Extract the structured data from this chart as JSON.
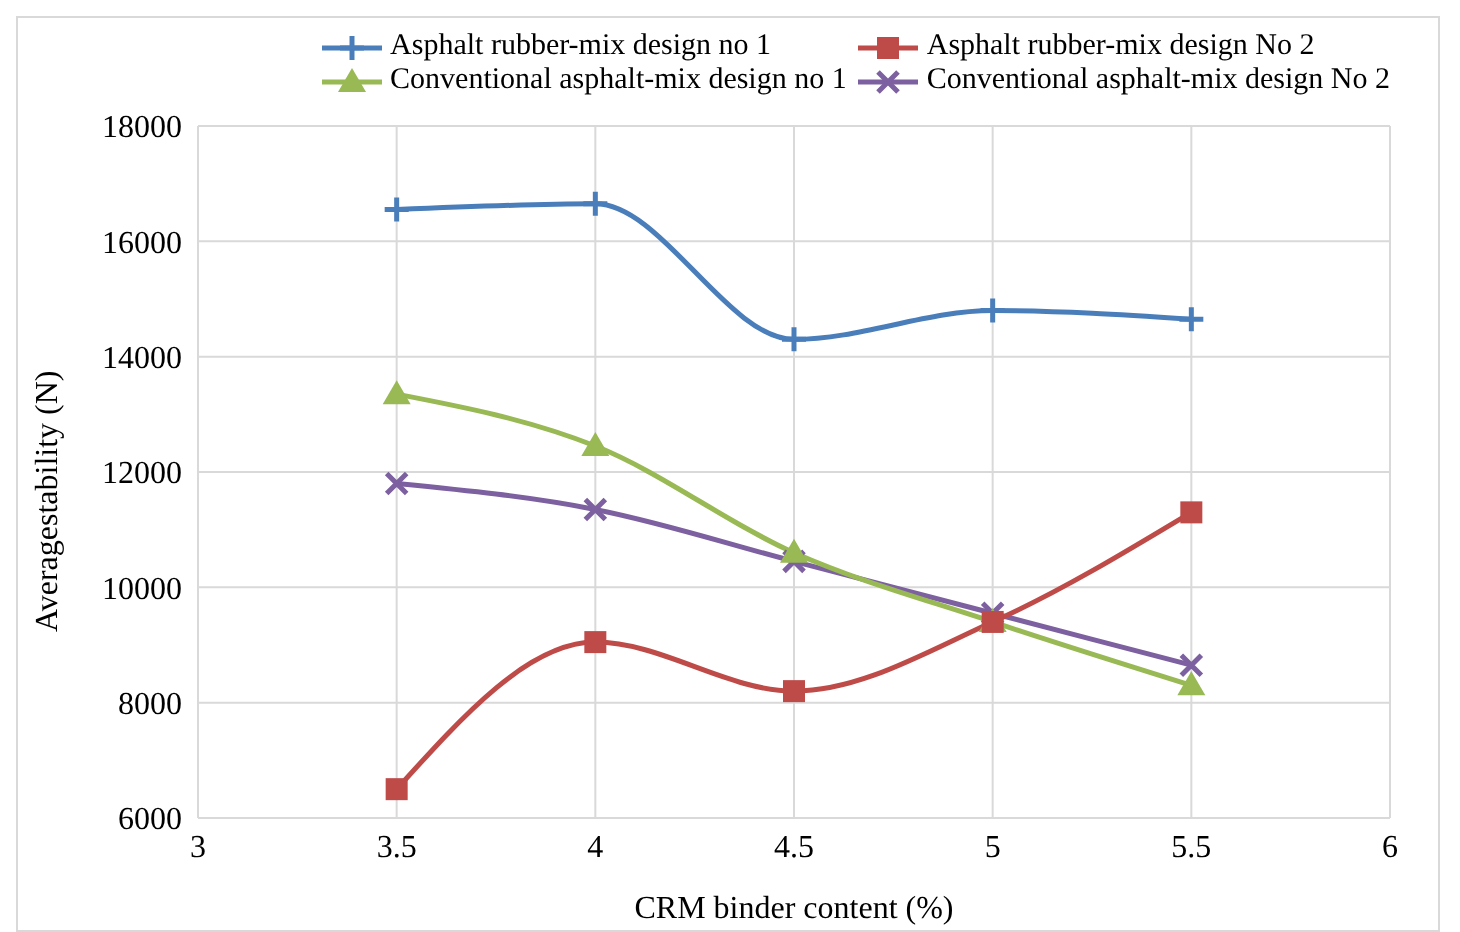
{
  "chart_data": {
    "type": "line",
    "xlabel": "CRM binder content (%)",
    "ylabel": "Averagestability (N)",
    "x": [
      3.5,
      4,
      4.5,
      5,
      5.5
    ],
    "xlim": [
      3,
      6
    ],
    "xticks": [
      3,
      3.5,
      4,
      4.5,
      5,
      5.5,
      6
    ],
    "ylim": [
      6000,
      18000
    ],
    "yticks": [
      6000,
      8000,
      10000,
      12000,
      14000,
      16000,
      18000
    ],
    "grid": true,
    "legend": "top",
    "line_style": "solid",
    "series": [
      {
        "name": "Asphalt rubber-mix design no 1",
        "color": "#4a7ebb",
        "marker": "plus",
        "values": [
          16550,
          16650,
          14300,
          14800,
          14650
        ]
      },
      {
        "name": "Asphalt rubber-mix design No 2",
        "color": "#be4b48",
        "marker": "square",
        "values": [
          6500,
          9050,
          8200,
          9400,
          11300
        ]
      },
      {
        "name": "Conventional asphalt-mix design no 1",
        "color": "#98b954",
        "marker": "triangle",
        "values": [
          13350,
          12450,
          10600,
          9400,
          8300
        ]
      },
      {
        "name": "Conventional asphalt-mix design No 2",
        "color": "#7d60a0",
        "marker": "cross",
        "values": [
          11800,
          11350,
          10450,
          9550,
          8650
        ]
      }
    ]
  }
}
